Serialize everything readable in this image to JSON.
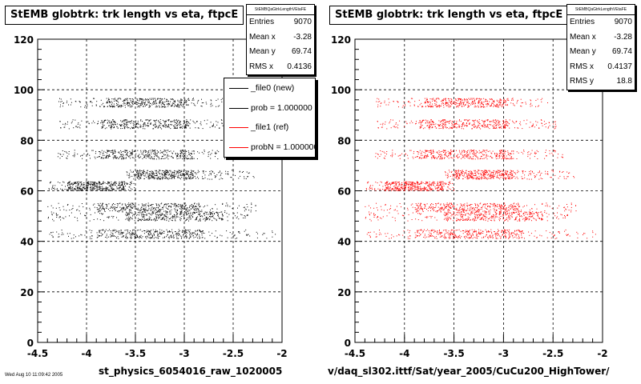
{
  "chart_data": [
    {
      "type": "scatter",
      "title": "StEMB globtrk: trk length vs eta, ftpcE",
      "xlabel": "st_physics_6054016_raw_1020005",
      "ylabel": "",
      "xlim": [
        -4.5,
        -2
      ],
      "ylim": [
        0,
        120
      ],
      "xticks": [
        "-4.5",
        "-4",
        "-3.5",
        "-3",
        "-2.5",
        "-2"
      ],
      "yticks": [
        "0",
        "20",
        "40",
        "60",
        "80",
        "100",
        "120"
      ],
      "grid": true,
      "marker_color": "#000000",
      "bands": [
        {
          "y": 95,
          "x_min": -4.3,
          "x_max": -2.55,
          "dense_min": -3.8,
          "dense_max": -2.95
        },
        {
          "y": 86.5,
          "x_min": -4.3,
          "x_max": -2.45,
          "dense_min": -3.85,
          "dense_max": -2.95
        },
        {
          "y": 74.5,
          "x_min": -4.3,
          "x_max": -2.4,
          "dense_min": -3.9,
          "dense_max": -2.9
        },
        {
          "y": 66.5,
          "x_min": -3.6,
          "x_max": -2.28,
          "dense_min": -3.5,
          "dense_max": -2.9
        },
        {
          "y": 62,
          "x_min": -4.4,
          "x_max": -3.5,
          "dense_min": -4.2,
          "dense_max": -3.6
        },
        {
          "y": 53.5,
          "x_min": -4.4,
          "x_max": -2.25,
          "dense_min": -3.9,
          "dense_max": -2.8
        },
        {
          "y": 50,
          "x_min": -4.4,
          "x_max": -2.35,
          "dense_min": -3.6,
          "dense_max": -2.6
        },
        {
          "y": 43,
          "x_min": -4.4,
          "x_max": -2.05,
          "dense_min": -3.9,
          "dense_max": -2.8
        }
      ],
      "stats": {
        "header": "StEMBQaGtrkLengthVEtaFE",
        "entries_label": "Entries",
        "entries": "9070",
        "mean_x_label": "Mean x",
        "mean_x": "-3.28",
        "mean_y_label": "Mean y",
        "mean_y": "69.74",
        "rms_x_label": "RMS x",
        "rms_x": "0.4136"
      },
      "legend": {
        "position": "top-right",
        "items": [
          {
            "label": "_file0 (new)",
            "color": "#000000"
          },
          {
            "label": "prob = 1.000000",
            "color": "#000000"
          },
          {
            "label": "_file1 (ref)",
            "color": "#ff0000"
          },
          {
            "label": "probN = 1.000000",
            "color": "#ff0000"
          }
        ]
      }
    },
    {
      "type": "scatter",
      "title": "StEMB globtrk: trk length vs eta, ftpcE",
      "xlabel": "v/daq_sl302.ittf/Sat/year_2005/CuCu200_HighTower/",
      "ylabel": "",
      "xlim": [
        -4.5,
        -2
      ],
      "ylim": [
        0,
        120
      ],
      "xticks": [
        "-4.5",
        "-4",
        "-3.5",
        "-3",
        "-2.5",
        "-2"
      ],
      "yticks": [
        "0",
        "20",
        "40",
        "60",
        "80",
        "100",
        "120"
      ],
      "grid": true,
      "marker_color": "#ff0000",
      "bands": [
        {
          "y": 95,
          "x_min": -4.3,
          "x_max": -2.55,
          "dense_min": -3.8,
          "dense_max": -2.95
        },
        {
          "y": 86.5,
          "x_min": -4.3,
          "x_max": -2.45,
          "dense_min": -3.85,
          "dense_max": -2.95
        },
        {
          "y": 74.5,
          "x_min": -4.3,
          "x_max": -2.4,
          "dense_min": -3.9,
          "dense_max": -2.9
        },
        {
          "y": 66.5,
          "x_min": -3.6,
          "x_max": -2.28,
          "dense_min": -3.5,
          "dense_max": -2.9
        },
        {
          "y": 62,
          "x_min": -4.4,
          "x_max": -3.5,
          "dense_min": -4.2,
          "dense_max": -3.6
        },
        {
          "y": 53.5,
          "x_min": -4.4,
          "x_max": -2.25,
          "dense_min": -3.9,
          "dense_max": -2.8
        },
        {
          "y": 50,
          "x_min": -4.4,
          "x_max": -2.35,
          "dense_min": -3.6,
          "dense_max": -2.6
        },
        {
          "y": 43,
          "x_min": -4.4,
          "x_max": -2.05,
          "dense_min": -3.9,
          "dense_max": -2.8
        }
      ],
      "stats": {
        "header": "StEMBQaGtrkLengthVEtaFE",
        "entries_label": "Entries",
        "entries": "9070",
        "mean_x_label": "Mean x",
        "mean_x": "-3.28",
        "mean_y_label": "Mean y",
        "mean_y": "69.74",
        "rms_x_label": "RMS x",
        "rms_x": "0.4137",
        "rms_y_label": "RMS y",
        "rms_y": "18.8"
      }
    }
  ],
  "footnote": "Wed Aug 10 11:09:42 2005"
}
